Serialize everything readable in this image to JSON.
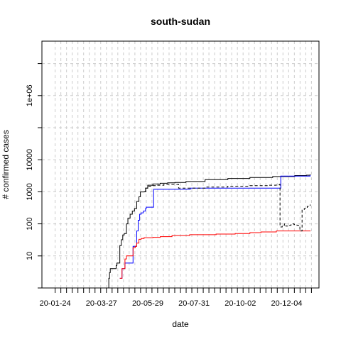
{
  "chart_data": {
    "type": "line",
    "title": "south-sudan",
    "xlabel": "date",
    "ylabel": "# confirmed cases",
    "y_scale": "log",
    "grid": true,
    "xlim": [
      "2020-01-06",
      "2021-01-17"
    ],
    "ylim": [
      1,
      50000000
    ],
    "x_tick_labels": [
      "20-01-24",
      "20-03-27",
      "20-05-29",
      "20-07-31",
      "20-10-02",
      "20-12-04"
    ],
    "x_ticks": [
      "2020-01-24",
      "2020-03-27",
      "2020-05-29",
      "2020-07-31",
      "2020-10-02",
      "2020-12-04"
    ],
    "y_tick_labels": [
      "10",
      "100",
      "1000",
      "10000",
      "1e+06"
    ],
    "y_ticks": [
      10,
      100,
      1000,
      10000,
      1000000
    ],
    "series": [
      {
        "color": "#000000",
        "dash": "solid",
        "points": [
          [
            "2020-04-05",
            1
          ],
          [
            "2020-04-06",
            2
          ],
          [
            "2020-04-07",
            3
          ],
          [
            "2020-04-08",
            4
          ],
          [
            "2020-04-15",
            4
          ],
          [
            "2020-04-16",
            5
          ],
          [
            "2020-04-17",
            6
          ],
          [
            "2020-04-20",
            6
          ],
          [
            "2020-04-21",
            21
          ],
          [
            "2020-04-23",
            32
          ],
          [
            "2020-04-25",
            45
          ],
          [
            "2020-04-27",
            50
          ],
          [
            "2020-04-30",
            100
          ],
          [
            "2020-05-02",
            150
          ],
          [
            "2020-05-05",
            200
          ],
          [
            "2020-05-08",
            250
          ],
          [
            "2020-05-11",
            300
          ],
          [
            "2020-05-14",
            500
          ],
          [
            "2020-05-17",
            700
          ],
          [
            "2020-05-19",
            990
          ],
          [
            "2020-05-24",
            1000
          ],
          [
            "2020-05-26",
            1300
          ],
          [
            "2020-05-29",
            1600
          ],
          [
            "2020-06-05",
            1750
          ],
          [
            "2020-06-15",
            1850
          ],
          [
            "2020-06-25",
            1900
          ],
          [
            "2020-07-05",
            1950
          ],
          [
            "2020-07-20",
            2100
          ],
          [
            "2020-08-15",
            2400
          ],
          [
            "2020-09-15",
            2600
          ],
          [
            "2020-10-15",
            2800
          ],
          [
            "2020-11-15",
            3000
          ],
          [
            "2020-12-15",
            3200
          ],
          [
            "2020-12-31",
            3300
          ],
          [
            "2021-01-05",
            3500
          ]
        ]
      },
      {
        "color": "#0000ff",
        "dash": "solid",
        "points": [
          [
            "2020-04-21",
            2
          ],
          [
            "2020-04-23",
            2
          ],
          [
            "2020-04-24",
            4
          ],
          [
            "2020-04-27",
            4
          ],
          [
            "2020-04-28",
            6
          ],
          [
            "2020-05-08",
            6
          ],
          [
            "2020-05-09",
            20
          ],
          [
            "2020-05-12",
            20
          ],
          [
            "2020-05-14",
            60
          ],
          [
            "2020-05-16",
            130
          ],
          [
            "2020-05-18",
            200
          ],
          [
            "2020-05-20",
            220
          ],
          [
            "2020-05-23",
            250
          ],
          [
            "2020-05-26",
            300
          ],
          [
            "2020-05-27",
            330
          ],
          [
            "2020-06-05",
            330
          ],
          [
            "2020-06-06",
            1200
          ],
          [
            "2020-07-25",
            1200
          ],
          [
            "2020-07-26",
            1300
          ],
          [
            "2020-11-25",
            1300
          ],
          [
            "2020-11-26",
            3100
          ],
          [
            "2021-01-05",
            3300
          ]
        ]
      },
      {
        "color": "#ff0000",
        "dash": "solid",
        "points": [
          [
            "2020-04-21",
            2
          ],
          [
            "2020-04-23",
            2
          ],
          [
            "2020-04-24",
            4
          ],
          [
            "2020-04-27",
            4
          ],
          [
            "2020-04-28",
            8
          ],
          [
            "2020-04-30",
            10
          ],
          [
            "2020-05-08",
            10
          ],
          [
            "2020-05-09",
            18
          ],
          [
            "2020-05-12",
            20
          ],
          [
            "2020-05-14",
            25
          ],
          [
            "2020-05-17",
            33
          ],
          [
            "2020-05-20",
            35
          ],
          [
            "2020-05-24",
            37
          ],
          [
            "2020-06-05",
            38
          ],
          [
            "2020-06-15",
            40
          ],
          [
            "2020-07-01",
            43
          ],
          [
            "2020-07-25",
            46
          ],
          [
            "2020-08-30",
            48
          ],
          [
            "2020-09-20",
            48
          ],
          [
            "2020-09-25",
            50
          ],
          [
            "2020-10-15",
            53
          ],
          [
            "2020-10-30",
            56
          ],
          [
            "2020-11-20",
            60
          ],
          [
            "2021-01-05",
            62
          ]
        ]
      },
      {
        "color": "#000000",
        "dash": "dashed",
        "points": [
          [
            "2020-05-24",
            1000
          ],
          [
            "2020-05-26",
            1300
          ],
          [
            "2020-05-29",
            1500
          ],
          [
            "2020-06-05",
            1550
          ],
          [
            "2020-06-10",
            1600
          ],
          [
            "2020-06-20",
            1700
          ],
          [
            "2020-07-10",
            1300
          ],
          [
            "2020-08-15",
            1400
          ],
          [
            "2020-09-15",
            1500
          ],
          [
            "2020-10-15",
            1550
          ],
          [
            "2020-11-10",
            1600
          ],
          [
            "2020-11-20",
            1650
          ],
          [
            "2020-11-24",
            1700
          ],
          [
            "2020-11-25",
            80
          ],
          [
            "2020-11-28",
            90
          ],
          [
            "2020-12-01",
            100
          ],
          [
            "2020-12-03",
            85
          ],
          [
            "2020-12-07",
            90
          ],
          [
            "2020-12-10",
            100
          ],
          [
            "2020-12-14",
            95
          ],
          [
            "2020-12-18",
            90
          ],
          [
            "2020-12-22",
            60
          ],
          [
            "2020-12-25",
            280
          ],
          [
            "2020-12-28",
            300
          ],
          [
            "2021-01-01",
            350
          ],
          [
            "2021-01-05",
            400
          ]
        ]
      }
    ]
  }
}
